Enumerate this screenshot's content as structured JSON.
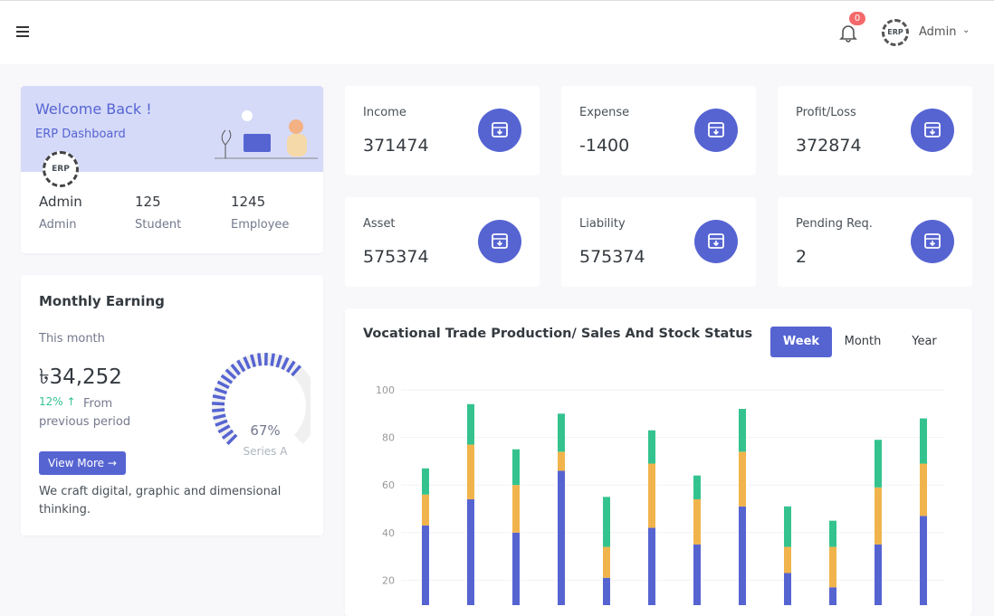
{
  "header": {
    "notification_count": "0",
    "logo": "ERP",
    "user": "Admin"
  },
  "welcome": {
    "title": "Welcome Back !",
    "subtitle": "ERP Dashboard",
    "logo": "ERP",
    "stats": [
      {
        "value": "Admin",
        "label": "Admin"
      },
      {
        "value": "125",
        "label": "Student"
      },
      {
        "value": "1245",
        "label": "Employee"
      }
    ]
  },
  "cards": [
    {
      "label": "Income",
      "value": "371474"
    },
    {
      "label": "Expense",
      "value": "-1400"
    },
    {
      "label": "Profit/Loss",
      "value": "372874"
    },
    {
      "label": "Asset",
      "value": "575374"
    },
    {
      "label": "Liability",
      "value": "575374"
    },
    {
      "label": "Pending Req.",
      "value": "2"
    }
  ],
  "earning": {
    "title": "Monthly Earning",
    "period": "This month",
    "amount": "৳34,252",
    "change": "12%",
    "change_text": "From previous period",
    "button": "View More",
    "footer": "We craft digital, graphic and dimensional thinking.",
    "gauge": {
      "value": 67,
      "label": "67%",
      "series": "Series A"
    }
  },
  "production": {
    "title": "Vocational Trade Production/ Sales And Stock Status",
    "tabs": [
      "Week",
      "Month",
      "Year"
    ],
    "active_tab": 0,
    "chart_data": {
      "type": "stacked-bar",
      "categories": [
        null,
        null,
        null,
        null,
        null,
        null,
        null,
        null,
        null,
        null,
        null,
        null
      ],
      "series": [
        {
          "color": "#5664d2",
          "values": [
            43,
            54,
            40,
            66,
            21,
            42,
            35,
            51,
            23,
            17,
            35,
            47
          ]
        },
        {
          "color": "#f1b44c",
          "values": [
            13,
            23,
            20,
            8,
            13,
            27,
            19,
            23,
            11,
            17,
            24,
            22
          ]
        },
        {
          "color": "#34c38f",
          "values": [
            11,
            17,
            15,
            16,
            21,
            14,
            10,
            18,
            17,
            11,
            20,
            19
          ]
        }
      ],
      "ylim": [
        0,
        100
      ],
      "yticks": [
        20,
        40,
        60,
        80,
        100
      ],
      "grid": true
    }
  }
}
